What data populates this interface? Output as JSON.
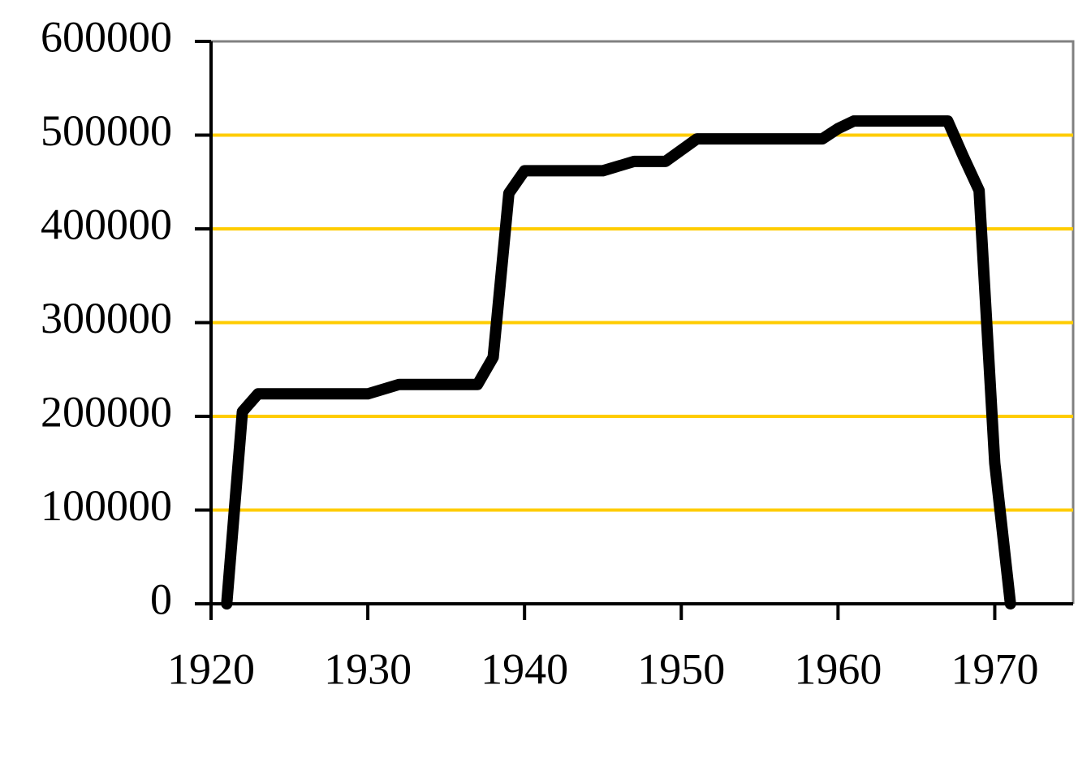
{
  "chart_data": {
    "type": "line",
    "x": [
      1921,
      1922,
      1923,
      1930,
      1932,
      1937,
      1938,
      1939,
      1940,
      1945,
      1947,
      1949,
      1951,
      1959,
      1960,
      1961,
      1967,
      1968,
      1969,
      1970,
      1971
    ],
    "series": [
      {
        "color": "#000000",
        "values": [
          0,
          205000,
          224000,
          224000,
          234000,
          234000,
          263000,
          438000,
          462000,
          462000,
          472000,
          472000,
          496000,
          496000,
          507000,
          515000,
          515000,
          477000,
          441000,
          150000,
          0
        ]
      }
    ],
    "xlim": [
      1920,
      1975
    ],
    "xticks": [
      1920,
      1930,
      1940,
      1950,
      1960,
      1970
    ],
    "ylim": [
      0,
      600000
    ],
    "yticks": [
      0,
      100000,
      200000,
      300000,
      400000,
      500000,
      600000
    ],
    "grid": true,
    "grid_color": "#ffcc00"
  }
}
